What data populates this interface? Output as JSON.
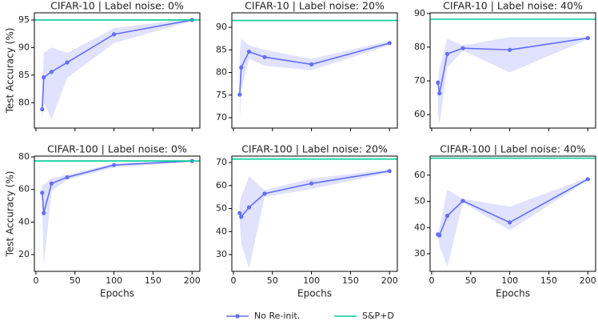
{
  "chart_data": [
    {
      "type": "line",
      "title": "CIFAR-10 | Label noise: 0%",
      "ylabel": "Test Accuracy (%)",
      "xticklabels": false,
      "x": [
        8,
        10,
        20,
        40,
        100,
        200
      ],
      "series": [
        {
          "name": "No Re-init.",
          "color": "#636efa",
          "values": [
            78.8,
            84.6,
            85.6,
            87.3,
            92.4,
            95.0
          ],
          "lower": [
            76.5,
            80,
            77,
            84.5,
            90.8,
            94.8
          ],
          "upper": [
            81,
            89,
            90,
            89,
            93.5,
            95.3
          ]
        },
        {
          "name": "S&P+D",
          "color": "#00cc96",
          "value": 95.0
        }
      ],
      "xlim": [
        -2,
        210
      ],
      "ylim": [
        75.4,
        96.3
      ],
      "xticks": [
        0,
        50,
        100,
        150,
        200
      ],
      "yticks": [
        80,
        85,
        90,
        95
      ],
      "legend": "below"
    },
    {
      "type": "line",
      "title": "CIFAR-10 | Label noise: 20%",
      "xticklabels": false,
      "x": [
        8,
        10,
        20,
        40,
        100,
        200
      ],
      "series": [
        {
          "name": "No Re-init.",
          "color": "#636efa",
          "values": [
            75.1,
            81.1,
            84.6,
            83.4,
            81.8,
            86.5
          ],
          "lower": [
            69,
            76,
            83,
            81.5,
            80.5,
            86
          ],
          "upper": [
            84,
            87.5,
            86,
            85,
            83,
            87
          ]
        },
        {
          "name": "S&P+D",
          "color": "#00cc96",
          "value": 91.5
        }
      ],
      "xlim": [
        -2,
        210
      ],
      "ylim": [
        67.7,
        93.2
      ],
      "xticks": [
        0,
        50,
        100,
        150,
        200
      ],
      "yticks": [
        70,
        75,
        80,
        85,
        90
      ]
    },
    {
      "type": "line",
      "title": "CIFAR-10 | Label noise: 40%",
      "xticklabels": false,
      "x": [
        8,
        10,
        20,
        40,
        100,
        200
      ],
      "series": [
        {
          "name": "No Re-init.",
          "color": "#636efa",
          "values": [
            69.5,
            66.3,
            78,
            79.7,
            79.2,
            82.7
          ],
          "lower": [
            60,
            57,
            74,
            79,
            72.5,
            82.3
          ],
          "upper": [
            70,
            74,
            82.5,
            80.5,
            83,
            83
          ]
        },
        {
          "name": "S&P+D",
          "color": "#00cc96",
          "value": 88.3
        }
      ],
      "xlim": [
        -2,
        210
      ],
      "ylim": [
        56,
        90.2
      ],
      "xticks": [
        0,
        50,
        100,
        150,
        200
      ],
      "yticks": [
        60,
        70,
        80,
        90
      ]
    },
    {
      "type": "line",
      "title": "CIFAR-100 | Label noise: 0%",
      "ylabel": "Test Accuracy (%)",
      "xlabel": "Epochs",
      "x": [
        8,
        10,
        20,
        40,
        100,
        200
      ],
      "series": [
        {
          "name": "No Re-init.",
          "color": "#636efa",
          "values": [
            58,
            45.5,
            63.7,
            67.5,
            75,
            77.5
          ],
          "lower": [
            50,
            13,
            59,
            66,
            73.5,
            77
          ],
          "upper": [
            63,
            63,
            67,
            69,
            76,
            78
          ]
        },
        {
          "name": "S&P+D",
          "color": "#00cc96",
          "value": 77.5
        }
      ],
      "xlim": [
        -2,
        210
      ],
      "ylim": [
        9.7,
        80.5
      ],
      "xticks": [
        0,
        50,
        100,
        150,
        200
      ],
      "yticks": [
        20,
        40,
        60,
        80
      ]
    },
    {
      "type": "line",
      "title": "CIFAR-100 | Label noise: 20%",
      "xlabel": "Epochs",
      "x": [
        8,
        10,
        20,
        40,
        100,
        200
      ],
      "series": [
        {
          "name": "No Re-init.",
          "color": "#636efa",
          "values": [
            48,
            46.4,
            50.5,
            56.5,
            60.9,
            66.3
          ],
          "lower": [
            44,
            35,
            24,
            55,
            58.5,
            65.5
          ],
          "upper": [
            52,
            55,
            64,
            58,
            63,
            67
          ]
        },
        {
          "name": "S&P+D",
          "color": "#00cc96",
          "value": 71.5
        }
      ],
      "xlim": [
        -2,
        210
      ],
      "ylim": [
        22.7,
        72.8
      ],
      "xticks": [
        0,
        50,
        100,
        150,
        200
      ],
      "yticks": [
        30,
        40,
        50,
        60,
        70
      ]
    },
    {
      "type": "line",
      "title": "CIFAR-100 | Label noise: 40%",
      "xlabel": "Epochs",
      "x": [
        8,
        10,
        20,
        40,
        100,
        200
      ],
      "series": [
        {
          "name": "No Re-init.",
          "color": "#636efa",
          "values": [
            37.4,
            37,
            44.5,
            50.2,
            42,
            58.5
          ],
          "lower": [
            37,
            33,
            25,
            49.5,
            39,
            58
          ],
          "upper": [
            38,
            40,
            54.5,
            51,
            48,
            59
          ]
        },
        {
          "name": "S&P+D",
          "color": "#00cc96",
          "value": 66.5
        }
      ],
      "xlim": [
        -2,
        210
      ],
      "ylim": [
        23.3,
        67.3
      ],
      "xticks": [
        0,
        50,
        100,
        150,
        200
      ],
      "yticks": [
        30,
        40,
        50,
        60
      ]
    }
  ]
}
